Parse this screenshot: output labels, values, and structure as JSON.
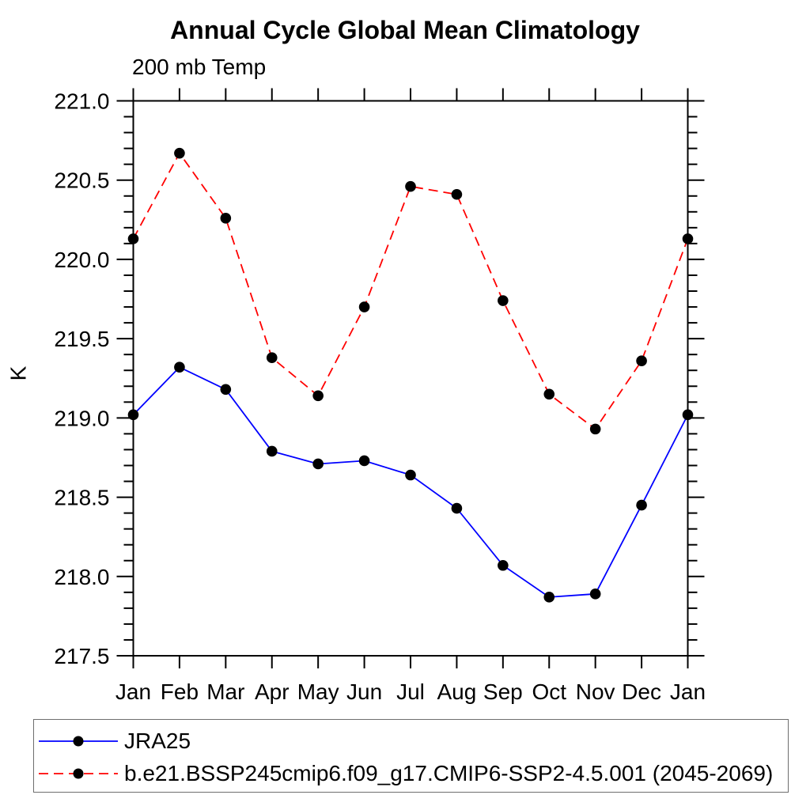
{
  "chart_data": {
    "type": "line",
    "title": "Annual Cycle Global Mean Climatology",
    "subtitle": "200 mb Temp",
    "ylabel": "K",
    "categories": [
      "Jan",
      "Feb",
      "Mar",
      "Apr",
      "May",
      "Jun",
      "Jul",
      "Aug",
      "Sep",
      "Oct",
      "Nov",
      "Dec",
      "Jan"
    ],
    "ylim": [
      217.5,
      221.0
    ],
    "yticks_major": [
      217.5,
      218.0,
      218.5,
      219.0,
      219.5,
      220.0,
      220.5,
      221.0
    ],
    "ytick_minor_step": 0.1,
    "grid": false,
    "legend_position": "bottom-outside-box",
    "axis_color": "#000000",
    "series": [
      {
        "name": "JRA25",
        "color": "#0000ff",
        "line_style": "solid",
        "marker": "filled-circle",
        "marker_color": "#000000",
        "values": [
          219.02,
          219.32,
          219.18,
          218.79,
          218.71,
          218.73,
          218.64,
          218.43,
          218.07,
          217.87,
          217.89,
          218.45,
          219.02
        ]
      },
      {
        "name": "b.e21.BSSP245cmip6.f09_g17.CMIP6-SSP2-4.5.001 (2045-2069)",
        "color": "#ff0000",
        "line_style": "dashed",
        "marker": "filled-circle",
        "marker_color": "#000000",
        "values": [
          220.13,
          220.67,
          220.26,
          219.38,
          219.14,
          219.7,
          220.46,
          220.41,
          219.74,
          219.15,
          218.93,
          219.36,
          220.13
        ]
      }
    ]
  }
}
